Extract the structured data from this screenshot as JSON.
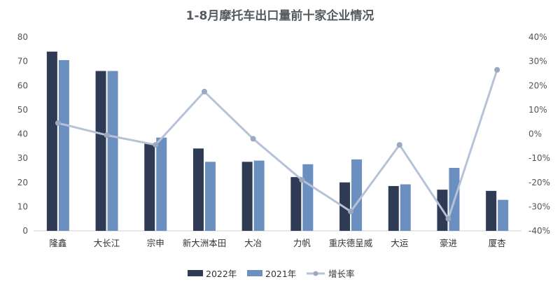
{
  "chart_data": {
    "type": "bar",
    "title": "1-8月摩托车出口量前十家企业情况",
    "categories": [
      "隆鑫",
      "大长江",
      "宗申",
      "新大洲本田",
      "大冶",
      "力帆",
      "重庆德呈威",
      "大运",
      "豪进",
      "厦杏"
    ],
    "series": [
      {
        "name": "2022年",
        "type": "bar",
        "axis": "left",
        "color": "#2f3b55",
        "values": [
          74.0,
          66.0,
          36.0,
          34.0,
          28.5,
          22.2,
          20.0,
          18.5,
          17.0,
          16.5
        ]
      },
      {
        "name": "2021年",
        "type": "bar",
        "axis": "left",
        "color": "#6b8fbf",
        "values": [
          70.5,
          66.0,
          38.5,
          28.5,
          29.0,
          27.5,
          29.5,
          19.2,
          26.0,
          12.8
        ]
      },
      {
        "name": "增长率",
        "type": "line",
        "axis": "right",
        "color": "#b6c2d6",
        "unit": "%",
        "values": [
          4.5,
          -0.5,
          -4.5,
          17.5,
          -2.0,
          -19.0,
          -32.0,
          -4.5,
          -35.0,
          26.5
        ]
      }
    ],
    "left_axis": {
      "min": 0,
      "max": 80,
      "ticks": [
        "0",
        "10",
        "20",
        "30",
        "40",
        "50",
        "60",
        "70",
        "80"
      ]
    },
    "right_axis": {
      "min": -40,
      "max": 40,
      "ticks": [
        "-40%",
        "-30%",
        "-20%",
        "-10%",
        "0%",
        "10%",
        "20%",
        "30%",
        "40%"
      ]
    },
    "legend_position": "bottom",
    "grid": false
  }
}
